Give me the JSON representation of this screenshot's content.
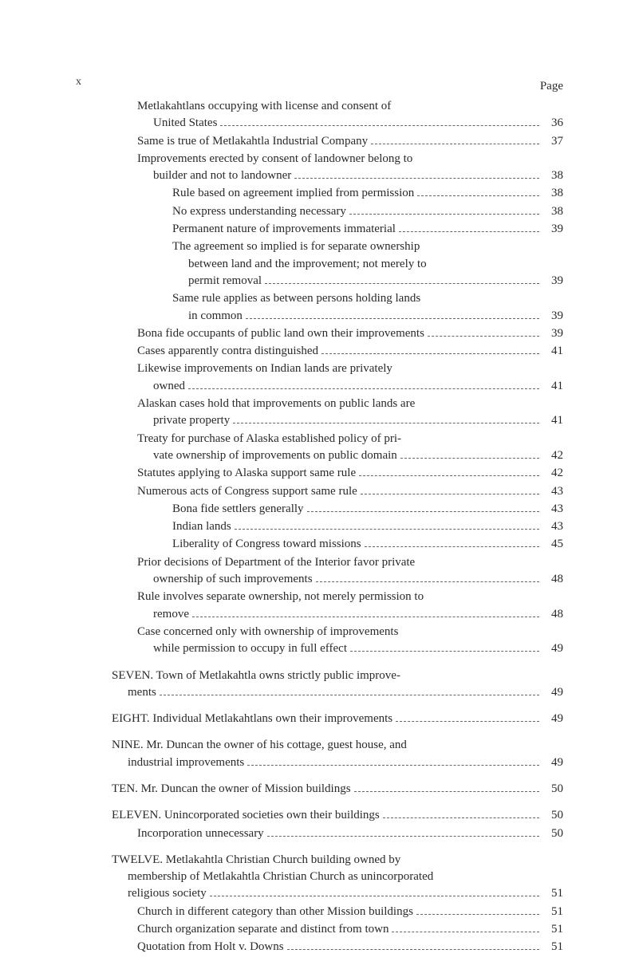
{
  "roman_label": "x",
  "page_label": "Page",
  "entries": [
    {
      "indent": 1,
      "lines": [
        "Metlakahtlans occupying with license and consent of",
        "United States"
      ],
      "page": "36",
      "gap": false
    },
    {
      "indent": 1,
      "lines": [
        "Same is true of Metlakahtla Industrial Company"
      ],
      "page": "37"
    },
    {
      "indent": 1,
      "lines": [
        "Improvements erected by consent of landowner belong to",
        "builder and not to landowner"
      ],
      "page": "38"
    },
    {
      "indent": 3,
      "lines": [
        "Rule based on agreement implied from permission"
      ],
      "page": "38"
    },
    {
      "indent": 3,
      "lines": [
        "No express understanding necessary"
      ],
      "page": "38"
    },
    {
      "indent": 3,
      "lines": [
        "Permanent nature of improvements immaterial"
      ],
      "page": "39"
    },
    {
      "indent": 3,
      "lines": [
        "The agreement so implied is for separate ownership",
        "between land and the improvement; not merely to",
        "permit removal"
      ],
      "page": "39"
    },
    {
      "indent": 3,
      "lines": [
        "Same rule applies as between persons holding lands",
        "in common"
      ],
      "page": "39"
    },
    {
      "indent": 1,
      "lines": [
        "Bona fide occupants of public land own their improvements"
      ],
      "page": "39"
    },
    {
      "indent": 1,
      "lines": [
        "Cases apparently contra distinguished"
      ],
      "page": "41"
    },
    {
      "indent": 1,
      "lines": [
        "Likewise improvements on Indian lands are privately",
        "owned"
      ],
      "page": "41"
    },
    {
      "indent": 1,
      "lines": [
        "Alaskan cases hold that improvements on public lands are",
        "private property"
      ],
      "page": "41"
    },
    {
      "indent": 1,
      "lines": [
        "Treaty for purchase of Alaska established policy of pri-",
        "vate ownership of improvements on public domain"
      ],
      "page": "42"
    },
    {
      "indent": 1,
      "lines": [
        "Statutes applying to Alaska support same rule"
      ],
      "page": "42"
    },
    {
      "indent": 1,
      "lines": [
        "Numerous acts of Congress support same rule"
      ],
      "page": "43"
    },
    {
      "indent": 3,
      "lines": [
        "Bona fide settlers generally"
      ],
      "page": "43"
    },
    {
      "indent": 3,
      "lines": [
        "Indian lands"
      ],
      "page": "43"
    },
    {
      "indent": 3,
      "lines": [
        "Liberality of Congress toward missions"
      ],
      "page": "45"
    },
    {
      "indent": 1,
      "lines": [
        "Prior decisions of Department of the Interior favor private",
        "ownership of such improvements"
      ],
      "page": "48"
    },
    {
      "indent": 1,
      "lines": [
        "Rule involves separate ownership, not merely permission to",
        "remove"
      ],
      "page": "48"
    },
    {
      "indent": 1,
      "lines": [
        "Case concerned only with ownership of improvements",
        "while permission to occupy in full effect"
      ],
      "page": "49"
    },
    {
      "indent": 0,
      "lines": [
        "SEVEN.  Town of Metlakahtla owns strictly public improve-",
        "ments"
      ],
      "page": "49",
      "gap": true
    },
    {
      "indent": 0,
      "lines": [
        "EIGHT.  Individual Metlakahtlans own their improvements"
      ],
      "page": "49",
      "gap": true
    },
    {
      "indent": 0,
      "lines": [
        "NINE.  Mr. Duncan the owner of his cottage, guest house, and",
        "industrial improvements"
      ],
      "page": "49",
      "gap": true
    },
    {
      "indent": 0,
      "lines": [
        "TEN.  Mr. Duncan the owner of Mission buildings"
      ],
      "page": "50",
      "gap": true
    },
    {
      "indent": 0,
      "lines": [
        "ELEVEN.  Unincorporated societies own their buildings"
      ],
      "page": "50",
      "gap": true
    },
    {
      "indent": 1,
      "lines": [
        "Incorporation unnecessary"
      ],
      "page": "50"
    },
    {
      "indent": 0,
      "lines": [
        "TWELVE.  Metlakahtla Christian Church building owned by",
        "membership of Metlakahtla Christian Church as unincorporated",
        "religious society"
      ],
      "page": "51",
      "gap": true
    },
    {
      "indent": 1,
      "lines": [
        "Church in different category than other Mission buildings"
      ],
      "page": "51"
    },
    {
      "indent": 1,
      "lines": [
        "Church organization separate and distinct from town"
      ],
      "page": "51"
    },
    {
      "indent": 1,
      "lines": [
        "Quotation from Holt v. Downs"
      ],
      "page": "51"
    }
  ]
}
